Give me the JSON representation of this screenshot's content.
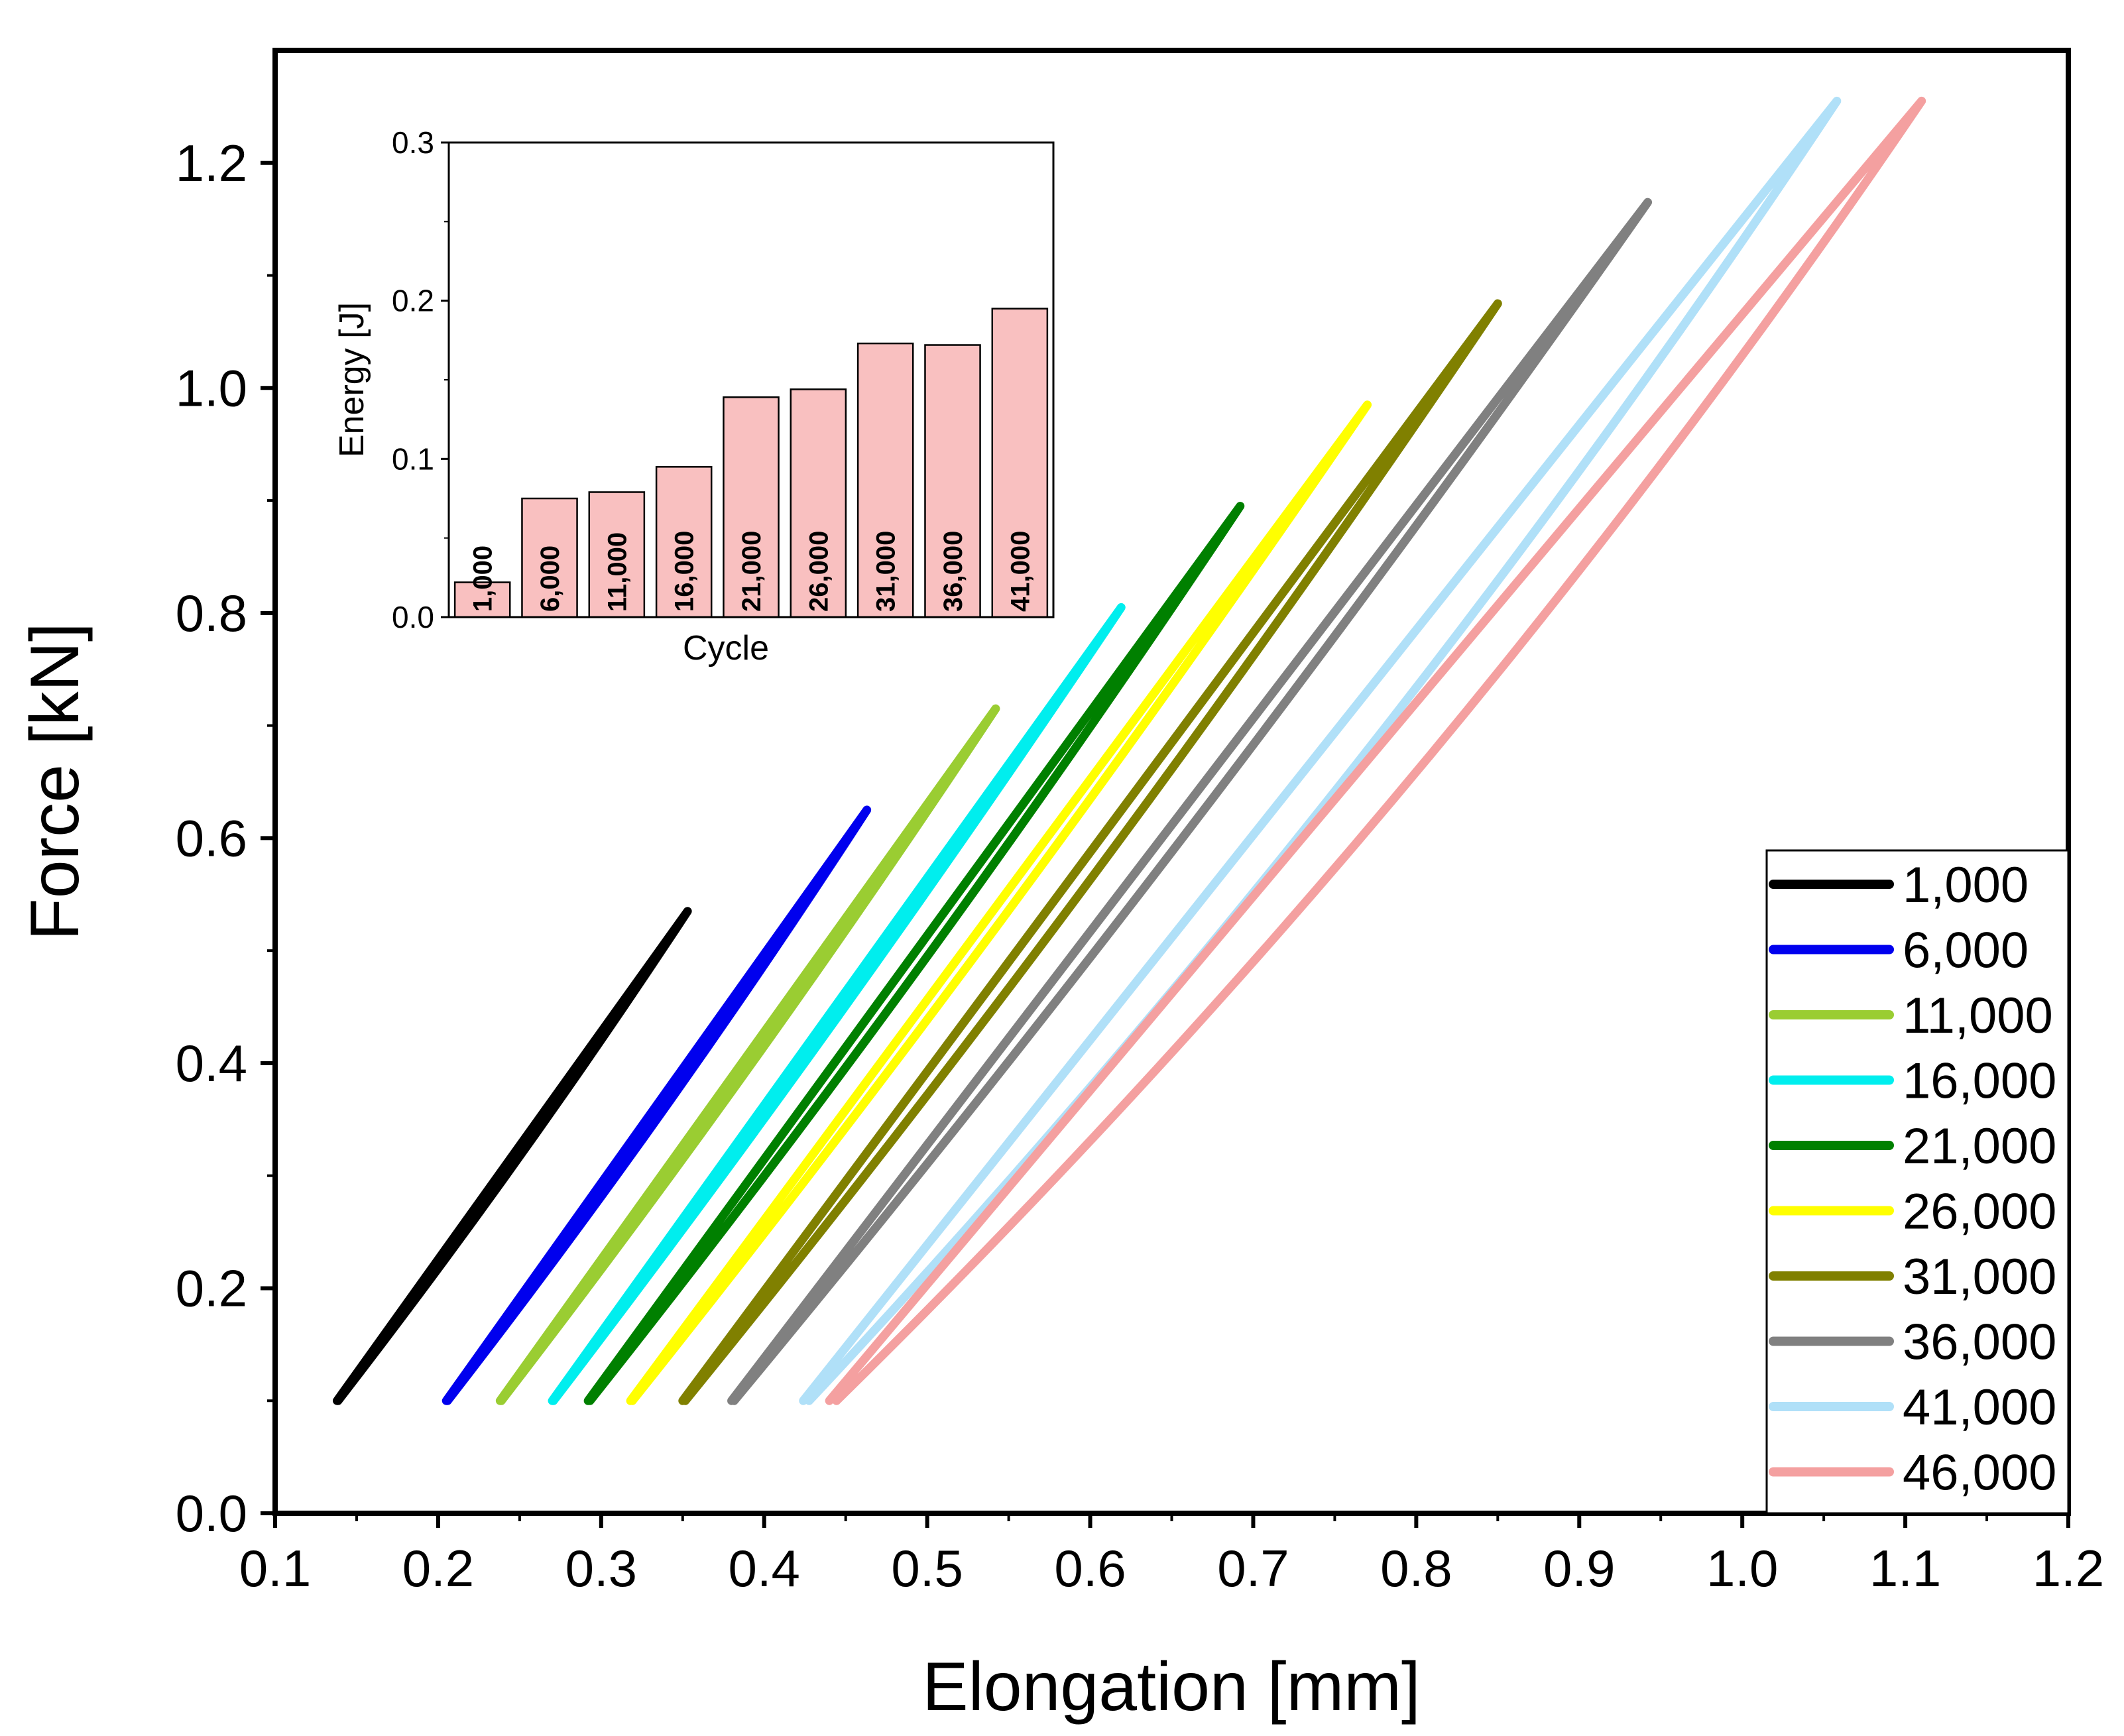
{
  "chart_data": [
    {
      "type": "line",
      "xlabel": "Elongation [mm]",
      "ylabel": "Force [kN]",
      "xlim": [
        0.1,
        1.2
      ],
      "ylim": [
        0.0,
        1.3
      ],
      "xticks": [
        "0.1",
        "0.2",
        "0.3",
        "0.4",
        "0.5",
        "0.6",
        "0.7",
        "0.8",
        "0.9",
        "1.0",
        "1.1",
        "1.2"
      ],
      "yticks": [
        "0.0",
        "0.2",
        "0.4",
        "0.6",
        "0.8",
        "1.0",
        "1.2"
      ],
      "legend_position": "bottom-right",
      "series": [
        {
          "name": "1,000",
          "color": "#000000",
          "x": [
            0.138,
            0.353
          ],
          "y": [
            0.1,
            0.535
          ],
          "hysteresis": 0.003
        },
        {
          "name": "6,000",
          "color": "#0000ee",
          "x": [
            0.205,
            0.463
          ],
          "y": [
            0.1,
            0.625
          ],
          "hysteresis": 0.004
        },
        {
          "name": "11,000",
          "color": "#9acd32",
          "x": [
            0.238,
            0.542
          ],
          "y": [
            0.1,
            0.715
          ],
          "hysteresis": 0.004
        },
        {
          "name": "16,000",
          "color": "#00eeee",
          "x": [
            0.27,
            0.619
          ],
          "y": [
            0.1,
            0.805
          ],
          "hysteresis": 0.004
        },
        {
          "name": "21,000",
          "color": "#008000",
          "x": [
            0.292,
            0.692
          ],
          "y": [
            0.1,
            0.895
          ],
          "hysteresis": 0.006
        },
        {
          "name": "26,000",
          "color": "#ffff00",
          "x": [
            0.318,
            0.77
          ],
          "y": [
            0.1,
            0.985
          ],
          "hysteresis": 0.006
        },
        {
          "name": "31,000",
          "color": "#808000",
          "x": [
            0.35,
            0.85
          ],
          "y": [
            0.1,
            1.075
          ],
          "hysteresis": 0.008
        },
        {
          "name": "36,000",
          "color": "#808080",
          "x": [
            0.38,
            0.942
          ],
          "y": [
            0.1,
            1.165
          ],
          "hysteresis": 0.008
        },
        {
          "name": "41,000",
          "color": "#b0e0f8",
          "x": [
            0.424,
            1.058
          ],
          "y": [
            0.1,
            1.255
          ],
          "hysteresis": 0.018
        },
        {
          "name": "46,000",
          "color": "#f4a0a0",
          "x": [
            0.44,
            1.11
          ],
          "y": [
            0.1,
            1.255
          ],
          "hysteresis": 0.022
        }
      ]
    },
    {
      "type": "bar",
      "xlabel": "Cycle",
      "ylabel": "Energy [J]",
      "ylim": [
        0.0,
        0.3
      ],
      "yticks": [
        "0.0",
        "0.1",
        "0.2",
        "0.3"
      ],
      "categories": [
        "1,000",
        "6,000",
        "11,000",
        "16,000",
        "21,000",
        "26,000",
        "31,000",
        "36,000",
        "41,000"
      ],
      "values": [
        0.022,
        0.075,
        0.079,
        0.095,
        0.139,
        0.144,
        0.173,
        0.172,
        0.195
      ],
      "bar_color": "#f9c0c0"
    }
  ]
}
